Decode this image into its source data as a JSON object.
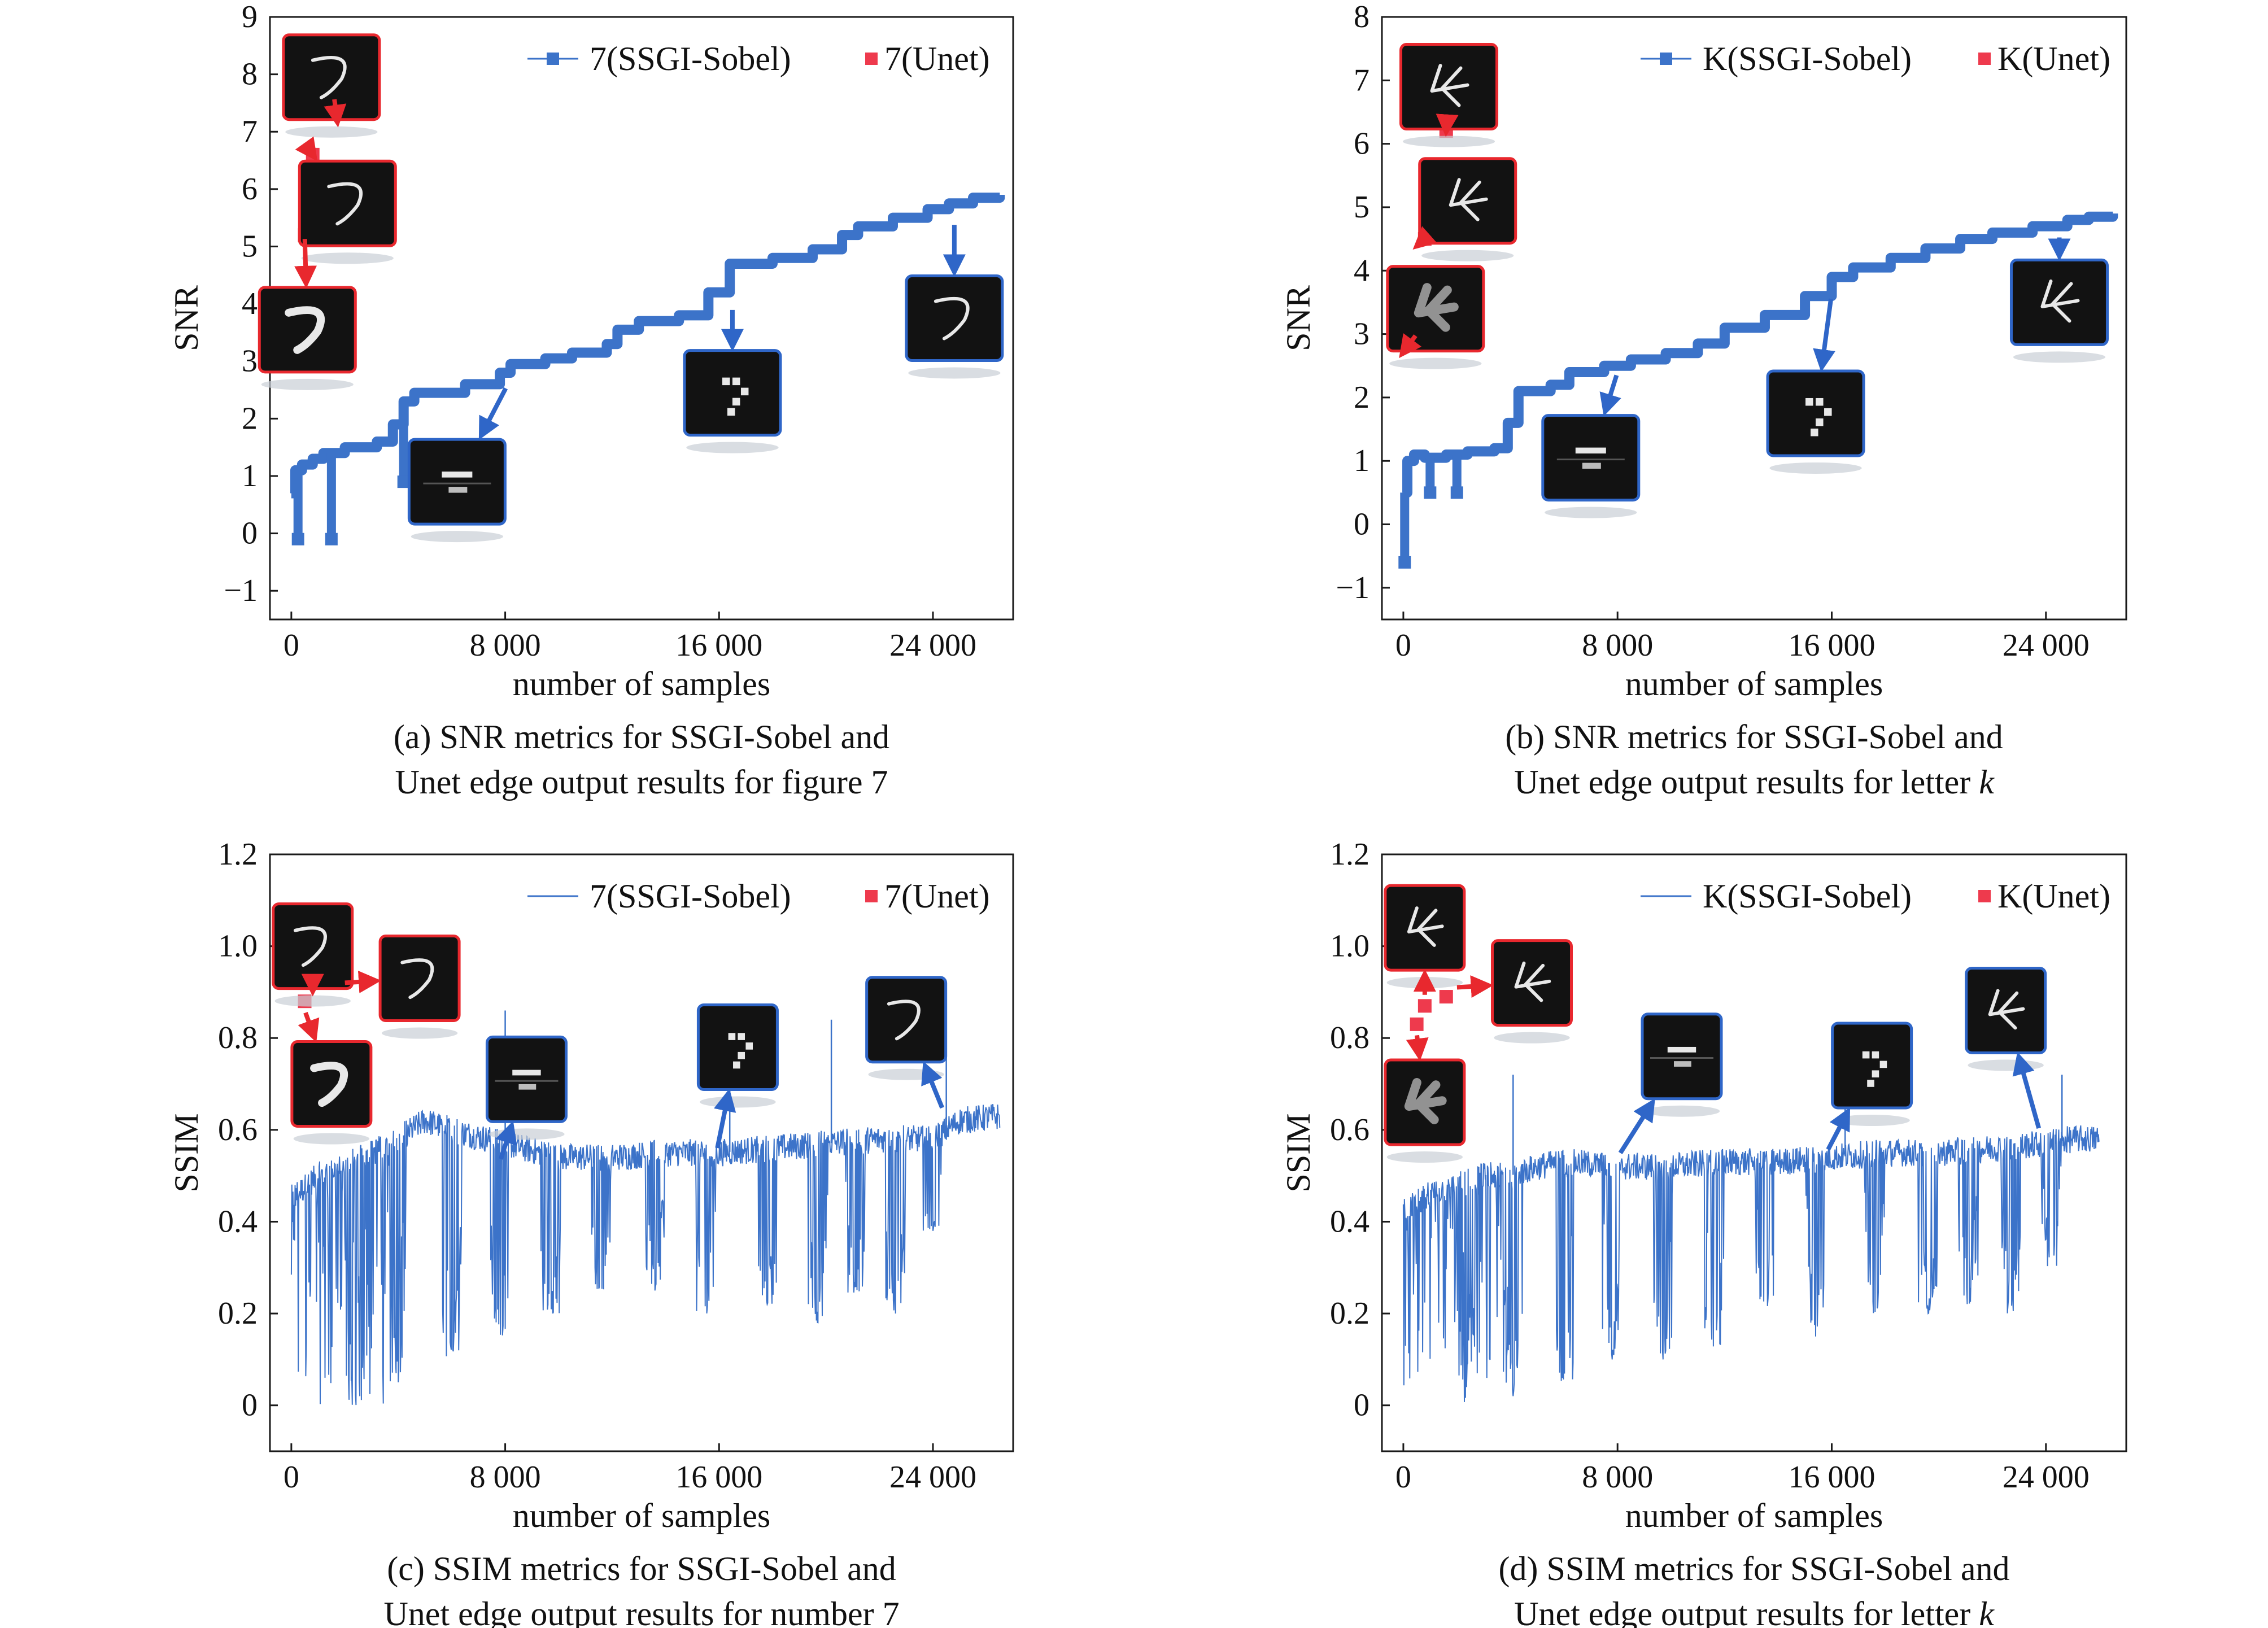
{
  "colors": {
    "sobel": "#3c73c9",
    "unet": "#ee3a4d",
    "arrow_red": "#e8282e",
    "arrow_blue": "#2f66c8",
    "thumb_bg": "#121212",
    "axis": "#1a1a1a"
  },
  "chart_data": [
    {
      "id": "a",
      "type": "line",
      "caption_line1": "(a) SNR metrics for SSGI-Sobel and",
      "caption_line2": "Unet edge output results for figure 7",
      "xlabel": "number of samples",
      "ylabel": "SNR",
      "xlim": [
        -800,
        27000
      ],
      "ylim": [
        -1.5,
        9
      ],
      "xticks": [
        0,
        8000,
        16000,
        24000
      ],
      "xtick_labels": [
        "0",
        "8 000",
        "16 000",
        "24 000"
      ],
      "yticks": [
        -1,
        0,
        1,
        2,
        3,
        4,
        5,
        6,
        7,
        8,
        9
      ],
      "ytick_labels": [
        "−1",
        "0",
        "1",
        "2",
        "3",
        "4",
        "5",
        "6",
        "7",
        "8",
        "9"
      ],
      "legend_position": "top-right",
      "thumb_glyph": "7",
      "series": [
        {
          "name": "7(SSGI-Sobel)",
          "style": "step",
          "x": [
            0,
            150,
            400,
            800,
            1200,
            2000,
            3200,
            3800,
            4200,
            4600,
            6500,
            7800,
            8200,
            9500,
            10500,
            11800,
            12200,
            13000,
            14500,
            15600,
            16400,
            18000,
            19500,
            20600,
            21200,
            22500,
            23800,
            24600,
            25500,
            26500
          ],
          "values": [
            0.7,
            1.1,
            1.2,
            1.3,
            1.4,
            1.5,
            1.6,
            1.9,
            2.3,
            2.45,
            2.6,
            2.8,
            2.95,
            3.05,
            3.15,
            3.3,
            3.55,
            3.7,
            3.8,
            4.2,
            4.7,
            4.8,
            4.95,
            5.2,
            5.35,
            5.5,
            5.65,
            5.75,
            5.85,
            5.9
          ],
          "dips_x": [
            250,
            1500,
            4200
          ],
          "dips_low": [
            -0.1,
            -0.1,
            0.9
          ]
        },
        {
          "name": "7(Unet)",
          "style": "markers",
          "x": [
            500,
            800,
            1600
          ],
          "values": [
            5.2,
            6.6,
            7.6
          ]
        }
      ],
      "insets_note": "thumbnails show reconstructed edge images at marked sample counts"
    },
    {
      "id": "b",
      "type": "line",
      "caption_line1": "(b) SNR metrics for SSGI-Sobel and",
      "caption_line2_text": "Unet edge output results for letter ",
      "caption_line2_italic": "k",
      "xlabel": "number of samples",
      "ylabel": "SNR",
      "xlim": [
        -800,
        27000
      ],
      "ylim": [
        -1.5,
        8
      ],
      "xticks": [
        0,
        8000,
        16000,
        24000
      ],
      "xtick_labels": [
        "0",
        "8 000",
        "16 000",
        "24 000"
      ],
      "yticks": [
        -1,
        0,
        1,
        2,
        3,
        4,
        5,
        6,
        7,
        8
      ],
      "ytick_labels": [
        "−1",
        "0",
        "1",
        "2",
        "3",
        "4",
        "5",
        "6",
        "7",
        "8"
      ],
      "legend_position": "top-right",
      "thumb_glyph": "k",
      "series": [
        {
          "name": "K(SSGI-Sobel)",
          "style": "step",
          "x": [
            0,
            150,
            400,
            800,
            1600,
            2400,
            3400,
            3900,
            4300,
            5500,
            6200,
            7500,
            8500,
            9800,
            11000,
            12000,
            13500,
            15000,
            16000,
            16800,
            18200,
            19500,
            20800,
            22000,
            23500,
            24800,
            25600,
            26500
          ],
          "values": [
            0.5,
            1.0,
            1.1,
            1.05,
            1.1,
            1.15,
            1.2,
            1.6,
            2.1,
            2.2,
            2.4,
            2.5,
            2.6,
            2.7,
            2.85,
            3.1,
            3.3,
            3.6,
            3.9,
            4.05,
            4.2,
            4.35,
            4.5,
            4.6,
            4.7,
            4.8,
            4.85,
            4.9
          ],
          "dips_x": [
            50,
            1000,
            2000
          ],
          "dips_low": [
            -0.6,
            0.5,
            0.5
          ]
        },
        {
          "name": "K(Unet)",
          "style": "markers",
          "x": [
            500,
            800,
            1600
          ],
          "values": [
            3.0,
            4.5,
            6.2
          ]
        }
      ]
    },
    {
      "id": "c",
      "type": "line",
      "caption_line1": "(c) SSIM metrics for SSGI-Sobel and",
      "caption_line2": "Unet edge output results for number 7",
      "xlabel": "number of samples",
      "ylabel": "SSIM",
      "xlim": [
        -800,
        27000
      ],
      "ylim": [
        -0.1,
        1.2
      ],
      "xticks": [
        0,
        8000,
        16000,
        24000
      ],
      "xtick_labels": [
        "0",
        "8 000",
        "16 000",
        "24 000"
      ],
      "yticks": [
        0,
        0.2,
        0.4,
        0.6,
        0.8,
        1.0,
        1.2
      ],
      "ytick_labels": [
        "0",
        "0.2",
        "0.4",
        "0.6",
        "0.8",
        "1.0",
        "1.2"
      ],
      "legend_position": "top-right",
      "thumb_glyph": "7",
      "series": [
        {
          "name": "7(SSGI-Sobel)",
          "style": "noisy",
          "x": [
            0,
            1000,
            2000,
            3000,
            4000,
            5000,
            6000,
            8000,
            10000,
            12000,
            14000,
            16000,
            18000,
            20000,
            22000,
            24000,
            25000,
            26500
          ],
          "values": [
            0.45,
            0.5,
            0.52,
            0.55,
            0.58,
            0.62,
            0.6,
            0.57,
            0.54,
            0.54,
            0.55,
            0.55,
            0.56,
            0.57,
            0.58,
            0.58,
            0.62,
            0.63
          ],
          "dips_x": [
            2300,
            4000,
            6000,
            7800,
            9700,
            11600,
            13600,
            15500,
            17800,
            19700,
            21100,
            22600,
            24000
          ],
          "dips_low": [
            0.0,
            0.05,
            0.1,
            0.15,
            0.2,
            0.25,
            0.25,
            0.2,
            0.22,
            0.18,
            0.24,
            0.2,
            0.38
          ],
          "spikes_x": [
            8000,
            16400,
            20200,
            24500
          ],
          "spikes_high": [
            0.86,
            0.86,
            0.84,
            0.82
          ]
        },
        {
          "name": "7(Unet)",
          "style": "markers",
          "x": [
            500,
            800,
            1600
          ],
          "values": [
            0.88,
            0.92,
            0.92
          ]
        }
      ]
    },
    {
      "id": "d",
      "type": "line",
      "caption_line1": "(d) SSIM metrics for SSGI-Sobel and",
      "caption_line2_text": "Unet edge output results for letter ",
      "caption_line2_italic": "k",
      "xlabel": "number of samples",
      "ylabel": "SSIM",
      "xlim": [
        -800,
        27000
      ],
      "ylim": [
        -0.1,
        1.2
      ],
      "xticks": [
        0,
        8000,
        16000,
        24000
      ],
      "xtick_labels": [
        "0",
        "8 000",
        "16 000",
        "24 000"
      ],
      "yticks": [
        0,
        0.2,
        0.4,
        0.6,
        0.8,
        1.0,
        1.2
      ],
      "ytick_labels": [
        "0",
        "0.2",
        "0.4",
        "0.6",
        "0.8",
        "1.0",
        "1.2"
      ],
      "legend_position": "top-right",
      "thumb_glyph": "k",
      "series": [
        {
          "name": "K(SSGI-Sobel)",
          "style": "noisy",
          "x": [
            0,
            1000,
            2000,
            3000,
            4000,
            5000,
            6000,
            8000,
            10000,
            12000,
            14000,
            16000,
            18000,
            20000,
            22000,
            24000,
            25000,
            26000
          ],
          "values": [
            0.42,
            0.46,
            0.48,
            0.5,
            0.5,
            0.52,
            0.53,
            0.52,
            0.52,
            0.53,
            0.53,
            0.54,
            0.55,
            0.55,
            0.56,
            0.57,
            0.58,
            0.58
          ],
          "dips_x": [
            2300,
            4100,
            6000,
            7800,
            9700,
            11600,
            13500,
            15400,
            17600,
            19600,
            21100,
            22700,
            24200
          ],
          "dips_low": [
            0.0,
            0.02,
            0.05,
            0.1,
            0.1,
            0.12,
            0.2,
            0.15,
            0.2,
            0.2,
            0.22,
            0.2,
            0.3
          ],
          "spikes_x": [
            4100,
            16500,
            24600
          ],
          "spikes_high": [
            0.72,
            0.72,
            0.72
          ]
        },
        {
          "name": "K(Unet)",
          "style": "markers",
          "x": [
            500,
            800,
            1600
          ],
          "values": [
            0.83,
            0.87,
            0.89
          ]
        }
      ]
    }
  ]
}
